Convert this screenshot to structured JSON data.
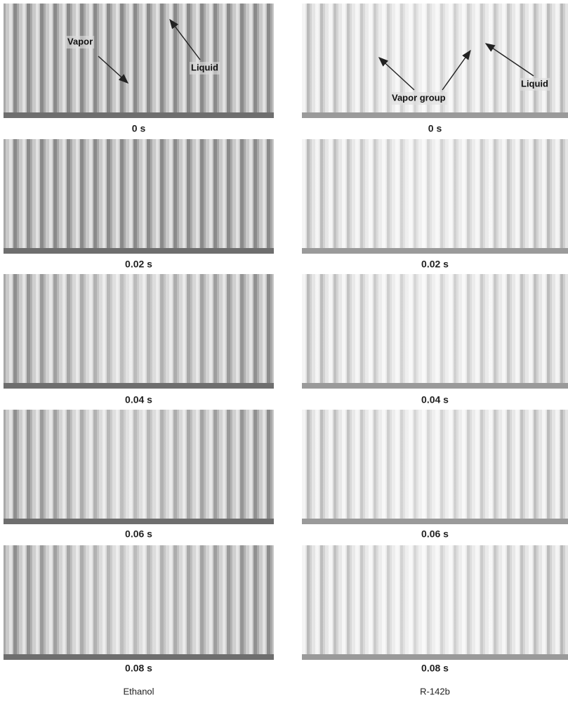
{
  "columns": [
    {
      "label": "Ethanol",
      "frames": [
        "0 s",
        "0.02 s",
        "0.04 s",
        "0.06 s",
        "0.08 s"
      ],
      "annotations": [
        "Vapor",
        "Liquid"
      ]
    },
    {
      "label": "R-142b",
      "frames": [
        "0 s",
        "0.02 s",
        "0.04 s",
        "0.06 s",
        "0.08 s"
      ],
      "annotations": [
        "Vapor group",
        "Liquid"
      ]
    }
  ]
}
